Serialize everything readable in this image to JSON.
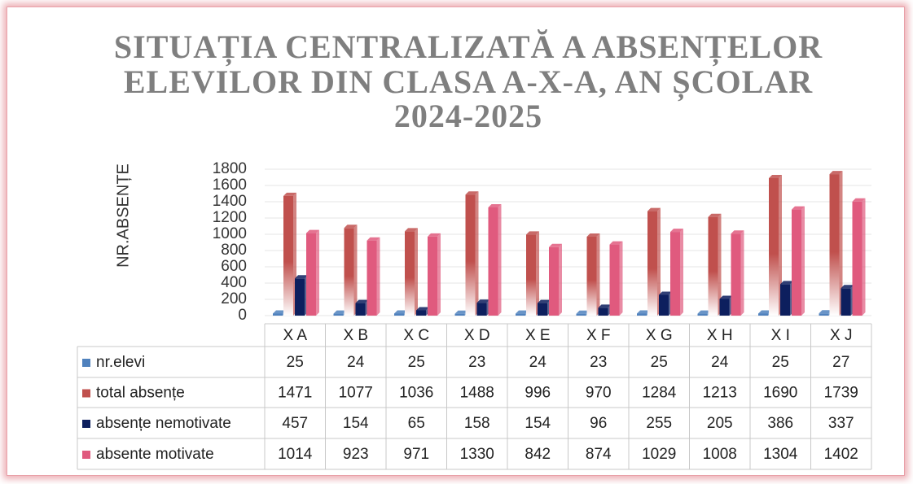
{
  "chart_data": {
    "type": "bar",
    "title": [
      "SITUAȚIA CENTRALIZATĂ A ABSENȚELOR",
      "ELEVILOR DIN CLASA A-X-A, AN ȘCOLAR",
      "2024-2025"
    ],
    "y_label": "NR.ABSENȚE",
    "categories": [
      "X A",
      "X B",
      "X C",
      "X D",
      "X E",
      "X F",
      "X G",
      "X H",
      "X I",
      "X J"
    ],
    "series": [
      {
        "name": "nr.elevi",
        "color": "#4f81bd",
        "values": [
          25,
          24,
          25,
          23,
          24,
          23,
          25,
          24,
          25,
          27
        ]
      },
      {
        "name": "total absențe",
        "color": "#c0504d",
        "values": [
          1471,
          1077,
          1036,
          1488,
          996,
          970,
          1284,
          1213,
          1690,
          1739
        ]
      },
      {
        "name": "absențe nemotivate",
        "color": "#0d1f5e",
        "values": [
          457,
          154,
          65,
          158,
          154,
          96,
          255,
          205,
          386,
          337
        ]
      },
      {
        "name": "absente motivate",
        "color": "#e05a7e",
        "values": [
          1014,
          923,
          971,
          1330,
          842,
          874,
          1029,
          1008,
          1304,
          1402
        ]
      }
    ],
    "ylim": [
      0,
      1800
    ],
    "yticks": [
      0,
      200,
      400,
      600,
      800,
      1000,
      1200,
      1400,
      1600,
      1800
    ],
    "grid": true,
    "data_table": true
  }
}
